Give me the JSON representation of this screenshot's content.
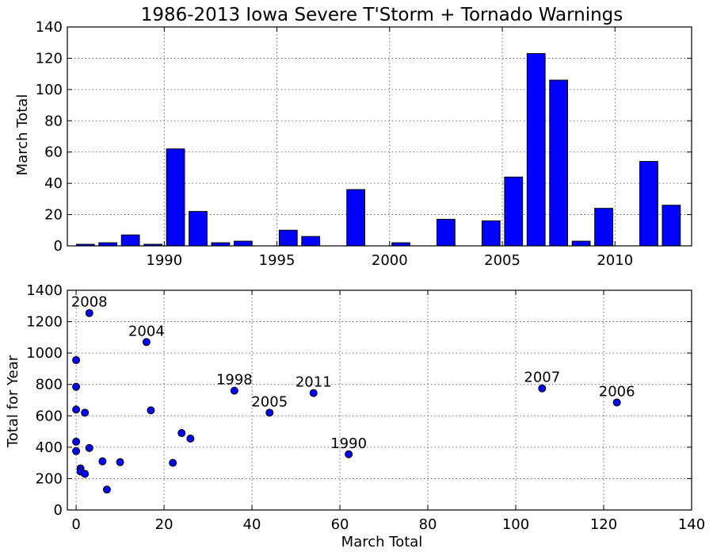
{
  "chart_data": [
    {
      "type": "bar",
      "title": "1986-2013 Iowa Severe T'Storm + Tornado Warnings",
      "xlabel": "",
      "ylabel": "March Total",
      "xlim": [
        1985.7,
        2013.4
      ],
      "ylim": [
        0,
        140
      ],
      "xticks": [
        1990,
        1995,
        2000,
        2005,
        2010
      ],
      "yticks": [
        0,
        20,
        40,
        60,
        80,
        100,
        120,
        140
      ],
      "grid": true,
      "color": "#0000ff",
      "x": [
        1986,
        1987,
        1988,
        1989,
        1990,
        1991,
        1992,
        1993,
        1994,
        1995,
        1996,
        1997,
        1998,
        1999,
        2000,
        2001,
        2002,
        2003,
        2004,
        2005,
        2006,
        2007,
        2008,
        2009,
        2010,
        2011,
        2012,
        2013
      ],
      "values": [
        1,
        2,
        7,
        1,
        62,
        22,
        2,
        3,
        0,
        10,
        6,
        0,
        36,
        0,
        2,
        0,
        17,
        0,
        16,
        44,
        123,
        106,
        3,
        24,
        0,
        54,
        26,
        0
      ]
    },
    {
      "type": "scatter",
      "title": "",
      "xlabel": "March Total",
      "ylabel": "Total for Year",
      "xlim": [
        -2,
        140
      ],
      "ylim": [
        0,
        1400
      ],
      "xticks": [
        0,
        20,
        40,
        60,
        80,
        100,
        120,
        140
      ],
      "yticks": [
        0,
        200,
        400,
        600,
        800,
        1000,
        1200,
        1400
      ],
      "grid": true,
      "color": "#0000ff",
      "points": [
        {
          "x": 0,
          "y": 955
        },
        {
          "x": 0,
          "y": 785
        },
        {
          "x": 0,
          "y": 640
        },
        {
          "x": 0,
          "y": 435
        },
        {
          "x": 0,
          "y": 375
        },
        {
          "x": 1,
          "y": 265
        },
        {
          "x": 1,
          "y": 245
        },
        {
          "x": 2,
          "y": 620
        },
        {
          "x": 2,
          "y": 230
        },
        {
          "x": 3,
          "y": 1255,
          "label": "2008"
        },
        {
          "x": 3,
          "y": 395
        },
        {
          "x": 6,
          "y": 310
        },
        {
          "x": 7,
          "y": 130
        },
        {
          "x": 10,
          "y": 305
        },
        {
          "x": 16,
          "y": 1070,
          "label": "2004"
        },
        {
          "x": 17,
          "y": 635
        },
        {
          "x": 22,
          "y": 300
        },
        {
          "x": 24,
          "y": 490
        },
        {
          "x": 26,
          "y": 455
        },
        {
          "x": 36,
          "y": 760,
          "label": "1998"
        },
        {
          "x": 44,
          "y": 620,
          "label": "2005"
        },
        {
          "x": 54,
          "y": 745,
          "label": "2011"
        },
        {
          "x": 62,
          "y": 355,
          "label": "1990"
        },
        {
          "x": 106,
          "y": 775,
          "label": "2007"
        },
        {
          "x": 123,
          "y": 685,
          "label": "2006"
        }
      ]
    }
  ]
}
